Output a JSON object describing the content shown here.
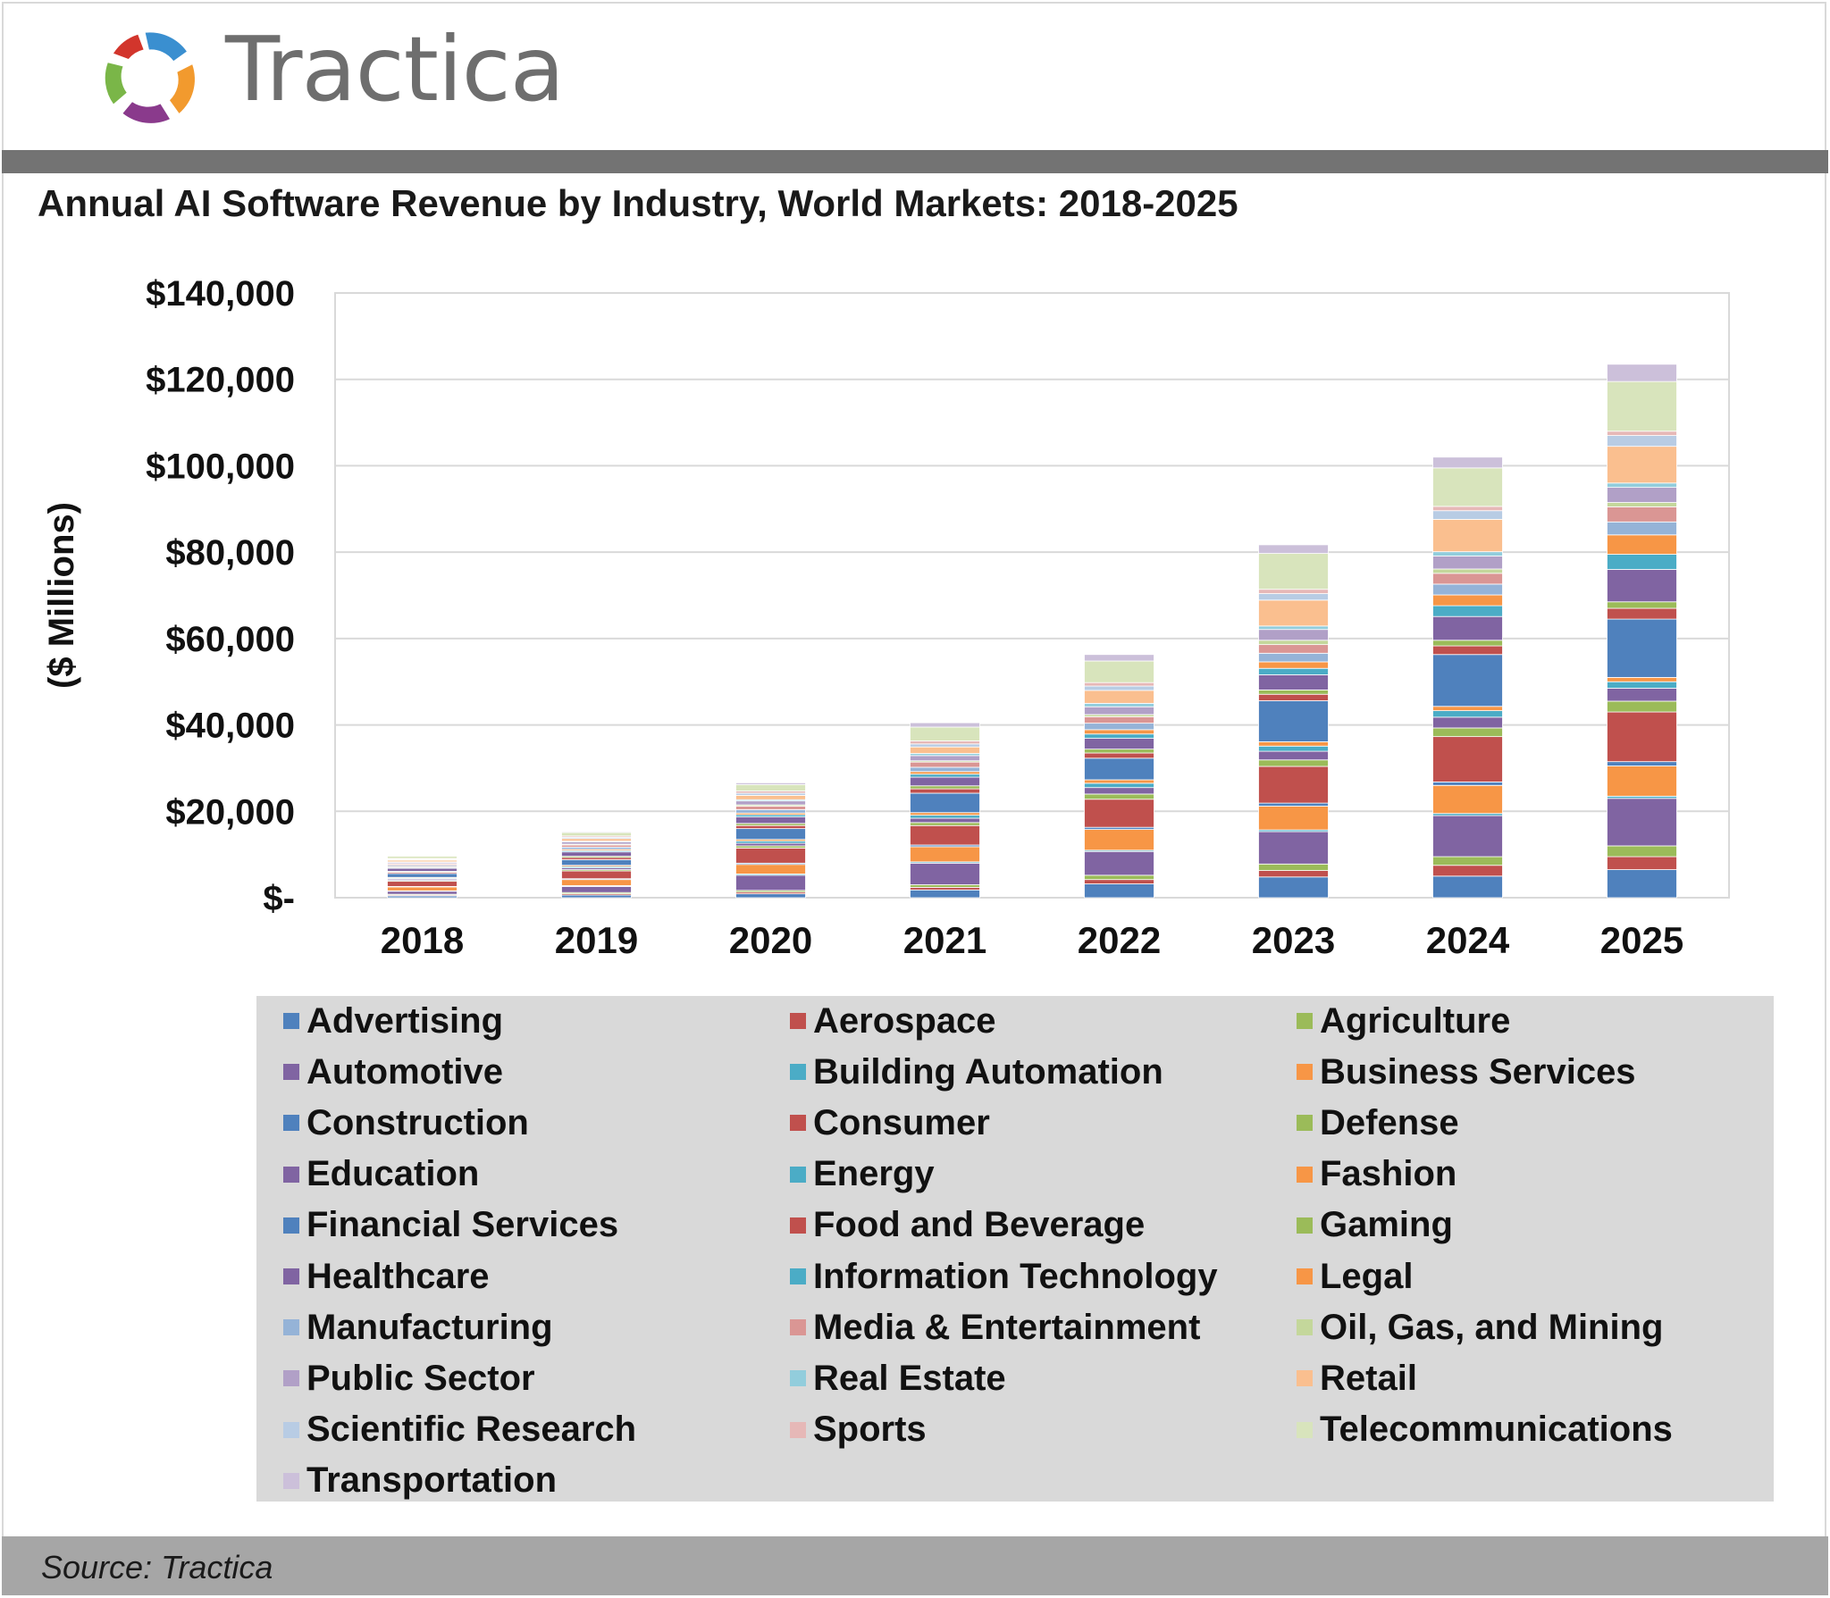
{
  "header": {
    "brand": "Tractica",
    "title": "Annual AI Software Revenue by Industry, World Markets: 2018-2025"
  },
  "source": "Source: Tractica",
  "chart_data": {
    "type": "bar",
    "stacked": true,
    "title": "Annual AI Software Revenue by Industry, World Markets: 2018-2025",
    "xlabel": "",
    "ylabel": "($ Millions)",
    "ylim": [
      0,
      140000
    ],
    "yticks": [
      0,
      20000,
      40000,
      60000,
      80000,
      100000,
      120000,
      140000
    ],
    "ytick_labels": [
      "$-",
      "$20,000",
      "$40,000",
      "$60,000",
      "$80,000",
      "$100,000",
      "$120,000",
      "$140,000"
    ],
    "grid": true,
    "legend_position": "bottom",
    "categories": [
      "2018",
      "2019",
      "2020",
      "2021",
      "2022",
      "2023",
      "2024",
      "2025"
    ],
    "series": [
      {
        "name": "Advertising",
        "color": "#4f81bd",
        "values": [
          400,
          600,
          900,
          1800,
          3200,
          4800,
          5000,
          6500
        ]
      },
      {
        "name": "Aerospace",
        "color": "#c0504d",
        "values": [
          200,
          300,
          400,
          600,
          1000,
          1500,
          2500,
          3000
        ]
      },
      {
        "name": "Agriculture",
        "color": "#9bbb59",
        "values": [
          200,
          300,
          400,
          600,
          1000,
          1500,
          2000,
          2500
        ]
      },
      {
        "name": "Automotive",
        "color": "#8064a2",
        "values": [
          700,
          1400,
          3500,
          5000,
          5500,
          7500,
          9500,
          11000
        ]
      },
      {
        "name": "Building Automation",
        "color": "#4bacc6",
        "values": [
          100,
          200,
          300,
          300,
          300,
          400,
          500,
          500
        ]
      },
      {
        "name": "Business Services",
        "color": "#f79646",
        "values": [
          900,
          1400,
          2200,
          3500,
          4800,
          5500,
          6500,
          7000
        ]
      },
      {
        "name": "Construction",
        "color": "#4f81bd",
        "values": [
          100,
          200,
          300,
          400,
          500,
          700,
          800,
          1000
        ]
      },
      {
        "name": "Consumer",
        "color": "#c0504d",
        "values": [
          1200,
          1800,
          3500,
          4500,
          6500,
          8500,
          10500,
          11500
        ]
      },
      {
        "name": "Defense",
        "color": "#9bbb59",
        "values": [
          200,
          300,
          500,
          700,
          1200,
          1500,
          2000,
          2500
        ]
      },
      {
        "name": "Education",
        "color": "#8064a2",
        "values": [
          300,
          400,
          600,
          1000,
          1500,
          2000,
          2500,
          3000
        ]
      },
      {
        "name": "Energy",
        "color": "#4bacc6",
        "values": [
          200,
          300,
          500,
          700,
          1000,
          1200,
          1500,
          1500
        ]
      },
      {
        "name": "Fashion",
        "color": "#f79646",
        "values": [
          200,
          300,
          400,
          600,
          800,
          1000,
          1000,
          1000
        ]
      },
      {
        "name": "Financial Services",
        "color": "#4f81bd",
        "values": [
          900,
          1300,
          2500,
          4500,
          5000,
          9500,
          12000,
          13500
        ]
      },
      {
        "name": "Food and Beverage",
        "color": "#c0504d",
        "values": [
          300,
          500,
          700,
          1000,
          1200,
          1500,
          2000,
          2500
        ]
      },
      {
        "name": "Gaming",
        "color": "#9bbb59",
        "values": [
          200,
          300,
          500,
          700,
          900,
          1000,
          1300,
          1500
        ]
      },
      {
        "name": "Healthcare",
        "color": "#8064a2",
        "values": [
          700,
          1000,
          1500,
          2000,
          2500,
          3500,
          5500,
          7500
        ]
      },
      {
        "name": "Information Technology",
        "color": "#4bacc6",
        "values": [
          200,
          300,
          500,
          700,
          1000,
          1500,
          2500,
          3500
        ]
      },
      {
        "name": "Legal",
        "color": "#f79646",
        "values": [
          200,
          300,
          400,
          600,
          1000,
          1500,
          2500,
          4500
        ]
      },
      {
        "name": "Manufacturing",
        "color": "#95b3d7",
        "values": [
          300,
          500,
          800,
          1000,
          1500,
          2000,
          2500,
          3000
        ]
      },
      {
        "name": "Media & Entertainment",
        "color": "#da9694",
        "values": [
          300,
          500,
          800,
          1200,
          1500,
          2000,
          2500,
          3500
        ]
      },
      {
        "name": "Oil, Gas, and Mining",
        "color": "#c4d79b",
        "values": [
          100,
          200,
          300,
          300,
          500,
          1000,
          1000,
          1000
        ]
      },
      {
        "name": "Public Sector",
        "color": "#b1a0c7",
        "values": [
          300,
          500,
          900,
          1200,
          1800,
          2500,
          3000,
          3500
        ]
      },
      {
        "name": "Real Estate",
        "color": "#92cddc",
        "values": [
          100,
          200,
          300,
          500,
          800,
          800,
          1000,
          1000
        ]
      },
      {
        "name": "Retail",
        "color": "#fabf8f",
        "values": [
          400,
          600,
          1000,
          1500,
          3000,
          6000,
          7500,
          8500
        ]
      },
      {
        "name": "Scientific Research",
        "color": "#b8cce4",
        "values": [
          200,
          300,
          500,
          700,
          1000,
          1500,
          2000,
          2500
        ]
      },
      {
        "name": "Sports",
        "color": "#e6b8b7",
        "values": [
          200,
          300,
          500,
          700,
          800,
          1000,
          1000,
          1000
        ]
      },
      {
        "name": "Telecommunications",
        "color": "#d8e4bc",
        "values": [
          500,
          800,
          1500,
          3200,
          5000,
          8300,
          8900,
          11500
        ]
      },
      {
        "name": "Transportation",
        "color": "#ccc0da",
        "values": [
          100,
          200,
          400,
          1000,
          1500,
          2000,
          2500,
          4000
        ]
      }
    ]
  }
}
